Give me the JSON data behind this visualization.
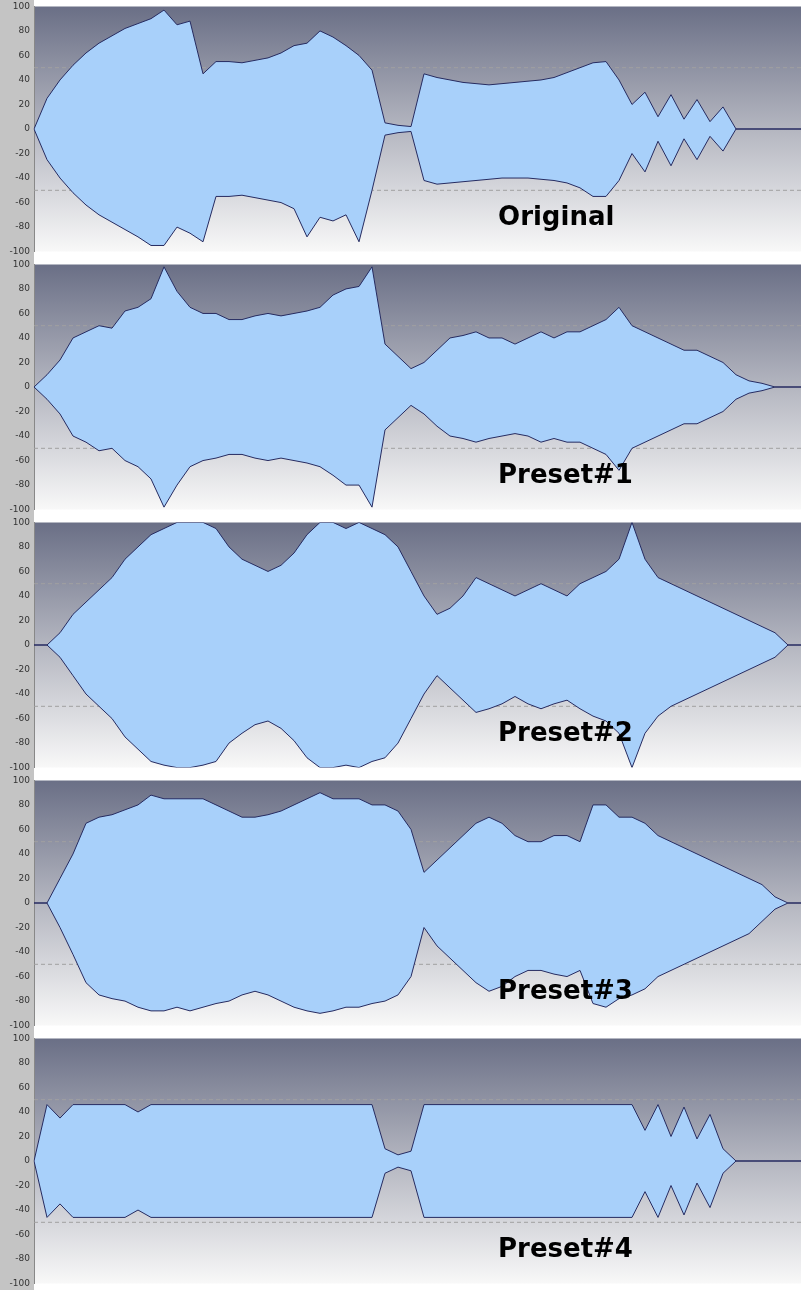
{
  "chart_data": [
    {
      "type": "area",
      "title": "Original",
      "categories": [
        null,
        null,
        null,
        null,
        null,
        null,
        null,
        null,
        null,
        null,
        null,
        null,
        null,
        null,
        null,
        null,
        null,
        null,
        null,
        null,
        null,
        null,
        null,
        null,
        null,
        null,
        null,
        null,
        null,
        null,
        null,
        null,
        null,
        null,
        null,
        null,
        null,
        null,
        null,
        null,
        null,
        null,
        null,
        null,
        null,
        null,
        null,
        null,
        null,
        null,
        null,
        null,
        null,
        null,
        null,
        null,
        null,
        null,
        null,
        null
      ],
      "series": [
        {
          "color": "#a8d0fa",
          "values": [
            0,
            25,
            40,
            52,
            62,
            70,
            76,
            82,
            86,
            90,
            97,
            85,
            88,
            45,
            55,
            55,
            54,
            56,
            58,
            62,
            68,
            70,
            80,
            75,
            68,
            60,
            48,
            5,
            3,
            2,
            45,
            42,
            40,
            38,
            37,
            36,
            37,
            38,
            39,
            40,
            42,
            46,
            50,
            54,
            55,
            40,
            20,
            30,
            10,
            28,
            8,
            24,
            6,
            18,
            0,
            0,
            0,
            0,
            0,
            0
          ]
        },
        {
          "color": "#a8d0fa",
          "values": [
            0,
            -25,
            -40,
            -52,
            -62,
            -70,
            -76,
            -82,
            -88,
            -95,
            -95,
            -80,
            -85,
            -92,
            -55,
            -55,
            -54,
            -56,
            -58,
            -60,
            -65,
            -88,
            -72,
            -75,
            -70,
            -92,
            -50,
            -5,
            -3,
            -2,
            -42,
            -45,
            -44,
            -43,
            -42,
            -41,
            -40,
            -40,
            -40,
            -41,
            -42,
            -44,
            -48,
            -55,
            -55,
            -42,
            -20,
            -35,
            -10,
            -30,
            -8,
            -25,
            -6,
            -18,
            0,
            0,
            0,
            0,
            0,
            0
          ]
        }
      ],
      "ylim": [
        -100,
        100
      ],
      "yticks": [
        -100,
        -80,
        -60,
        -40,
        -20,
        0,
        20,
        40,
        60,
        80,
        100
      ],
      "tick_labels": "y",
      "grid": false,
      "marker": "none",
      "ref_lines": [
        {
          "axis": "y",
          "value": 50,
          "color": "#a0a0a0",
          "line_style": "dashed"
        },
        {
          "axis": "y",
          "value": -50,
          "color": "#a0a0a0",
          "line_style": "dashed"
        }
      ]
    },
    {
      "type": "area",
      "title": "Preset#1",
      "categories": [
        null,
        null,
        null,
        null,
        null,
        null,
        null,
        null,
        null,
        null,
        null,
        null,
        null,
        null,
        null,
        null,
        null,
        null,
        null,
        null,
        null,
        null,
        null,
        null,
        null,
        null,
        null,
        null,
        null,
        null,
        null,
        null,
        null,
        null,
        null,
        null,
        null,
        null,
        null,
        null,
        null,
        null,
        null,
        null,
        null,
        null,
        null,
        null,
        null,
        null,
        null,
        null,
        null,
        null,
        null,
        null,
        null,
        null,
        null,
        null
      ],
      "series": [
        {
          "color": "#a8d0fa",
          "values": [
            0,
            10,
            22,
            40,
            45,
            50,
            48,
            62,
            65,
            72,
            98,
            78,
            65,
            60,
            60,
            55,
            55,
            58,
            60,
            58,
            60,
            62,
            65,
            75,
            80,
            82,
            98,
            35,
            25,
            15,
            20,
            30,
            40,
            42,
            45,
            40,
            40,
            35,
            40,
            45,
            40,
            45,
            45,
            50,
            55,
            65,
            50,
            45,
            40,
            35,
            30,
            30,
            25,
            20,
            10,
            5,
            3,
            0,
            0,
            0
          ]
        },
        {
          "color": "#a8d0fa",
          "values": [
            0,
            -10,
            -22,
            -40,
            -45,
            -52,
            -50,
            -60,
            -65,
            -75,
            -98,
            -80,
            -65,
            -60,
            -58,
            -55,
            -55,
            -58,
            -60,
            -58,
            -60,
            -62,
            -65,
            -72,
            -80,
            -80,
            -98,
            -35,
            -25,
            -15,
            -22,
            -32,
            -40,
            -42,
            -45,
            -42,
            -40,
            -38,
            -40,
            -45,
            -42,
            -45,
            -45,
            -50,
            -55,
            -68,
            -50,
            -45,
            -40,
            -35,
            -30,
            -30,
            -25,
            -20,
            -10,
            -5,
            -3,
            0,
            0,
            0
          ]
        }
      ],
      "ylim": [
        -100,
        100
      ],
      "yticks": [
        -100,
        -80,
        -60,
        -40,
        -20,
        0,
        20,
        40,
        60,
        80,
        100
      ],
      "tick_labels": "y",
      "grid": false,
      "marker": "none",
      "ref_lines": [
        {
          "axis": "y",
          "value": 50,
          "color": "#a0a0a0",
          "line_style": "dashed"
        },
        {
          "axis": "y",
          "value": -50,
          "color": "#a0a0a0",
          "line_style": "dashed"
        }
      ]
    },
    {
      "type": "area",
      "title": "Preset#2",
      "categories": [
        null,
        null,
        null,
        null,
        null,
        null,
        null,
        null,
        null,
        null,
        null,
        null,
        null,
        null,
        null,
        null,
        null,
        null,
        null,
        null,
        null,
        null,
        null,
        null,
        null,
        null,
        null,
        null,
        null,
        null,
        null,
        null,
        null,
        null,
        null,
        null,
        null,
        null,
        null,
        null,
        null,
        null,
        null,
        null,
        null,
        null,
        null,
        null,
        null,
        null,
        null,
        null,
        null,
        null,
        null,
        null,
        null,
        null,
        null,
        null
      ],
      "series": [
        {
          "color": "#a8d0fa",
          "values": [
            0,
            0,
            10,
            25,
            35,
            45,
            55,
            70,
            80,
            90,
            95,
            100,
            100,
            100,
            95,
            80,
            70,
            65,
            60,
            65,
            75,
            90,
            100,
            100,
            95,
            100,
            95,
            90,
            80,
            60,
            40,
            25,
            30,
            40,
            55,
            50,
            45,
            40,
            45,
            50,
            45,
            40,
            50,
            55,
            60,
            70,
            100,
            70,
            55,
            50,
            45,
            40,
            35,
            30,
            25,
            20,
            15,
            10,
            0,
            0
          ]
        },
        {
          "color": "#a8d0fa",
          "values": [
            0,
            0,
            -10,
            -25,
            -40,
            -50,
            -60,
            -75,
            -85,
            -95,
            -98,
            -100,
            -100,
            -98,
            -95,
            -80,
            -72,
            -65,
            -62,
            -68,
            -78,
            -92,
            -100,
            -100,
            -98,
            -100,
            -95,
            -92,
            -80,
            -60,
            -40,
            -25,
            -35,
            -45,
            -55,
            -52,
            -48,
            -42,
            -48,
            -52,
            -48,
            -45,
            -52,
            -58,
            -62,
            -72,
            -100,
            -72,
            -58,
            -50,
            -45,
            -40,
            -35,
            -30,
            -25,
            -20,
            -15,
            -10,
            0,
            0
          ]
        }
      ],
      "ylim": [
        -100,
        100
      ],
      "yticks": [
        -100,
        -80,
        -60,
        -40,
        -20,
        0,
        20,
        40,
        60,
        80,
        100
      ],
      "tick_labels": "y",
      "grid": false,
      "marker": "none",
      "ref_lines": [
        {
          "axis": "y",
          "value": 50,
          "color": "#a0a0a0",
          "line_style": "dashed"
        },
        {
          "axis": "y",
          "value": -50,
          "color": "#a0a0a0",
          "line_style": "dashed"
        }
      ]
    },
    {
      "type": "area",
      "title": "Preset#3",
      "categories": [
        null,
        null,
        null,
        null,
        null,
        null,
        null,
        null,
        null,
        null,
        null,
        null,
        null,
        null,
        null,
        null,
        null,
        null,
        null,
        null,
        null,
        null,
        null,
        null,
        null,
        null,
        null,
        null,
        null,
        null,
        null,
        null,
        null,
        null,
        null,
        null,
        null,
        null,
        null,
        null,
        null,
        null,
        null,
        null,
        null,
        null,
        null,
        null,
        null,
        null,
        null,
        null,
        null,
        null,
        null,
        null,
        null,
        null,
        null,
        null
      ],
      "series": [
        {
          "color": "#a8d0fa",
          "values": [
            0,
            0,
            20,
            40,
            65,
            70,
            72,
            76,
            80,
            88,
            85,
            85,
            85,
            85,
            80,
            75,
            70,
            70,
            72,
            75,
            80,
            85,
            90,
            85,
            85,
            85,
            80,
            80,
            75,
            60,
            25,
            35,
            45,
            55,
            65,
            70,
            65,
            55,
            50,
            50,
            55,
            55,
            50,
            80,
            80,
            70,
            70,
            65,
            55,
            50,
            45,
            40,
            35,
            30,
            25,
            20,
            15,
            5,
            0,
            0
          ]
        },
        {
          "color": "#a8d0fa",
          "values": [
            0,
            0,
            -20,
            -42,
            -65,
            -75,
            -78,
            -80,
            -85,
            -88,
            -88,
            -85,
            -88,
            -85,
            -82,
            -80,
            -75,
            -72,
            -75,
            -80,
            -85,
            -88,
            -90,
            -88,
            -85,
            -85,
            -82,
            -80,
            -75,
            -60,
            -20,
            -35,
            -45,
            -55,
            -65,
            -72,
            -68,
            -60,
            -55,
            -55,
            -58,
            -60,
            -55,
            -82,
            -85,
            -78,
            -75,
            -70,
            -60,
            -55,
            -50,
            -45,
            -40,
            -35,
            -30,
            -25,
            -15,
            -5,
            0,
            0
          ]
        }
      ],
      "ylim": [
        -100,
        100
      ],
      "yticks": [
        -100,
        -80,
        -60,
        -40,
        -20,
        0,
        20,
        40,
        60,
        80,
        100
      ],
      "tick_labels": "y",
      "grid": false,
      "marker": "none",
      "ref_lines": [
        {
          "axis": "y",
          "value": 50,
          "color": "#a0a0a0",
          "line_style": "dashed"
        },
        {
          "axis": "y",
          "value": -50,
          "color": "#a0a0a0",
          "line_style": "dashed"
        }
      ]
    },
    {
      "type": "area",
      "title": "Preset#4",
      "categories": [
        null,
        null,
        null,
        null,
        null,
        null,
        null,
        null,
        null,
        null,
        null,
        null,
        null,
        null,
        null,
        null,
        null,
        null,
        null,
        null,
        null,
        null,
        null,
        null,
        null,
        null,
        null,
        null,
        null,
        null,
        null,
        null,
        null,
        null,
        null,
        null,
        null,
        null,
        null,
        null,
        null,
        null,
        null,
        null,
        null,
        null,
        null,
        null,
        null,
        null,
        null,
        null,
        null,
        null,
        null,
        null,
        null,
        null,
        null,
        null
      ],
      "series": [
        {
          "color": "#a8d0fa",
          "values": [
            0,
            46,
            35,
            46,
            46,
            46,
            46,
            46,
            40,
            46,
            46,
            46,
            46,
            46,
            46,
            46,
            46,
            46,
            46,
            46,
            46,
            46,
            46,
            46,
            46,
            46,
            46,
            10,
            5,
            8,
            46,
            46,
            46,
            46,
            46,
            46,
            46,
            46,
            46,
            46,
            46,
            46,
            46,
            46,
            46,
            46,
            46,
            25,
            46,
            20,
            44,
            18,
            38,
            10,
            0,
            0,
            0,
            0,
            0,
            0
          ]
        },
        {
          "color": "#a8d0fa",
          "values": [
            0,
            -46,
            -35,
            -46,
            -46,
            -46,
            -46,
            -46,
            -40,
            -46,
            -46,
            -46,
            -46,
            -46,
            -46,
            -46,
            -46,
            -46,
            -46,
            -46,
            -46,
            -46,
            -46,
            -46,
            -46,
            -46,
            -46,
            -10,
            -5,
            -8,
            -46,
            -46,
            -46,
            -46,
            -46,
            -46,
            -46,
            -46,
            -46,
            -46,
            -46,
            -46,
            -46,
            -46,
            -46,
            -46,
            -46,
            -25,
            -46,
            -20,
            -44,
            -18,
            -38,
            -10,
            0,
            0,
            0,
            0,
            0,
            0
          ]
        }
      ],
      "ylim": [
        -100,
        100
      ],
      "yticks": [
        -100,
        -80,
        -60,
        -40,
        -20,
        0,
        20,
        40,
        60,
        80,
        100
      ],
      "tick_labels": "y",
      "grid": false,
      "marker": "none",
      "ref_lines": [
        {
          "axis": "y",
          "value": 50,
          "color": "#a0a0a0",
          "line_style": "dashed"
        },
        {
          "axis": "y",
          "value": -50,
          "color": "#a0a0a0",
          "line_style": "dashed"
        }
      ]
    }
  ]
}
